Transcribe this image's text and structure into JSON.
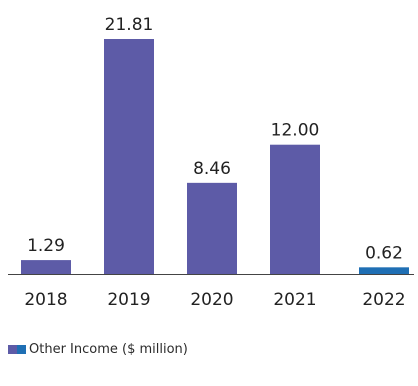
{
  "chart_data": {
    "type": "bar",
    "categories": [
      "2018",
      "2019",
      "2020",
      "2021",
      "2022"
    ],
    "values": [
      1.29,
      21.81,
      8.46,
      12.0,
      0.62
    ],
    "value_labels": [
      "1.29",
      "21.81",
      "8.46",
      "12.00",
      "0.62"
    ],
    "bar_colors": [
      "#5d5ba7",
      "#5d5ba7",
      "#5d5ba7",
      "#5d5ba7",
      "#1f6fb4"
    ],
    "ylim": [
      0,
      22
    ],
    "grid": false,
    "legend": {
      "position": "bottom-left",
      "label": "Other Income ($ million)",
      "swatch_colors": [
        "#5d5ba7",
        "#1f6fb4"
      ]
    }
  }
}
